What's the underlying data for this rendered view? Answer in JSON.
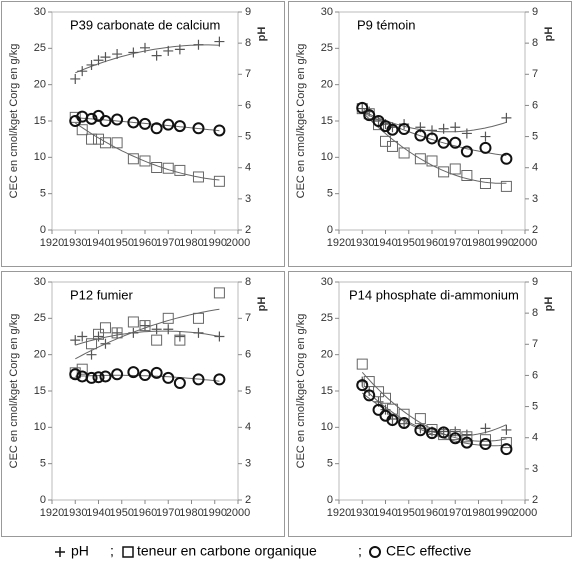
{
  "legend_separator": ";",
  "chart_data": [
    {
      "type": "scatter",
      "title": "P39 carbonate de calcium",
      "ylabel": "CEC en cmol/kget Corg en g/kg",
      "y2label": "pH",
      "x": [
        1930,
        1933,
        1937,
        1940,
        1943,
        1948,
        1955,
        1960,
        1965,
        1970,
        1975,
        1983,
        1992
      ],
      "xlim": [
        1920,
        2000
      ],
      "xticks": [
        1920,
        1930,
        1940,
        1950,
        1960,
        1970,
        1980,
        1990,
        2000
      ],
      "ylim": [
        0,
        30
      ],
      "yticks": [
        0,
        5,
        10,
        15,
        20,
        25,
        30
      ],
      "y2lim": [
        2,
        9
      ],
      "y2ticks": [
        2,
        3,
        4,
        5,
        6,
        7,
        8,
        9
      ],
      "grid": false,
      "trendline": "polynomial",
      "series": [
        {
          "name": "pH",
          "marker": "plus",
          "color": "#555555",
          "axis": "y2",
          "values": [
            6.85,
            7.1,
            7.3,
            7.45,
            7.55,
            7.65,
            7.7,
            7.85,
            7.6,
            7.75,
            7.8,
            7.95,
            8.05
          ]
        },
        {
          "name": "teneur en carbone organique",
          "marker": "square",
          "color": "#666666",
          "values": [
            15.5,
            13.8,
            12.5,
            12.5,
            12.0,
            12.0,
            9.8,
            9.5,
            8.6,
            8.5,
            8.2,
            7.3,
            6.7
          ]
        },
        {
          "name": "CEC effective",
          "marker": "circle",
          "color": "#111111",
          "values": [
            15.0,
            15.6,
            15.3,
            15.7,
            15.0,
            15.2,
            14.8,
            14.6,
            14.0,
            14.5,
            14.3,
            14.0,
            13.7
          ]
        }
      ]
    },
    {
      "type": "scatter",
      "title": "P9 témoin",
      "ylabel": "CEC en cmol/kget Corg en g/kg",
      "y2label": "pH",
      "x": [
        1930,
        1933,
        1937,
        1940,
        1943,
        1948,
        1955,
        1960,
        1965,
        1970,
        1975,
        1983,
        1992
      ],
      "xlim": [
        1920,
        2000
      ],
      "xticks": [
        1920,
        1930,
        1940,
        1950,
        1960,
        1970,
        1980,
        1990,
        2000
      ],
      "ylim": [
        0,
        30
      ],
      "yticks": [
        0,
        5,
        10,
        15,
        20,
        25,
        30
      ],
      "y2lim": [
        2,
        9
      ],
      "y2ticks": [
        2,
        3,
        4,
        5,
        6,
        7,
        8,
        9
      ],
      "grid": false,
      "trendline": "polynomial",
      "series": [
        {
          "name": "pH",
          "marker": "plus",
          "color": "#555555",
          "axis": "y2",
          "values": [
            5.9,
            5.8,
            5.5,
            5.4,
            5.3,
            5.4,
            5.3,
            5.2,
            5.25,
            5.3,
            5.1,
            5.0,
            5.6
          ]
        },
        {
          "name": "teneur en carbone organique",
          "marker": "square",
          "color": "#666666",
          "values": [
            16.7,
            16.0,
            14.5,
            12.2,
            11.5,
            10.6,
            9.8,
            9.5,
            8.0,
            8.4,
            7.5,
            6.4,
            6.0
          ]
        },
        {
          "name": "CEC effective",
          "marker": "circle",
          "color": "#111111",
          "values": [
            16.8,
            15.8,
            15.0,
            14.3,
            13.8,
            13.9,
            13.0,
            12.6,
            12.0,
            12.0,
            10.8,
            11.3,
            9.8
          ]
        }
      ]
    },
    {
      "type": "scatter",
      "title": "P12 fumier",
      "ylabel": "CEC en cmol/kget Corg en g/kg",
      "y2label": "pH",
      "x": [
        1930,
        1933,
        1937,
        1940,
        1943,
        1948,
        1955,
        1960,
        1965,
        1970,
        1975,
        1983,
        1992
      ],
      "xlim": [
        1920,
        2000
      ],
      "xticks": [
        1920,
        1930,
        1940,
        1950,
        1960,
        1970,
        1980,
        1990,
        2000
      ],
      "ylim": [
        0,
        30
      ],
      "yticks": [
        0,
        5,
        10,
        15,
        20,
        25,
        30
      ],
      "y2lim": [
        2,
        8
      ],
      "y2ticks": [
        2,
        3,
        4,
        5,
        6,
        7,
        8
      ],
      "grid": false,
      "trendline": "polynomial",
      "series": [
        {
          "name": "pH",
          "marker": "plus",
          "color": "#555555",
          "axis": "y2",
          "values": [
            6.4,
            6.5,
            6.0,
            6.5,
            6.3,
            6.6,
            6.6,
            6.8,
            6.7,
            6.7,
            6.5,
            6.6,
            6.5
          ]
        },
        {
          "name": "teneur en carbone organique",
          "marker": "square",
          "color": "#666666",
          "values": [
            17.5,
            18.0,
            21.5,
            22.8,
            23.7,
            23.0,
            24.5,
            24.0,
            22.0,
            25.0,
            22.0,
            25.0,
            28.5
          ]
        },
        {
          "name": "CEC effective",
          "marker": "circle",
          "color": "#111111",
          "values": [
            17.3,
            17.0,
            16.8,
            16.9,
            17.0,
            17.3,
            17.6,
            17.2,
            17.5,
            16.8,
            16.1,
            16.6,
            16.6
          ]
        }
      ]
    },
    {
      "type": "scatter",
      "title": "P14 phosphate di-ammonium",
      "ylabel": "CEC en cmol/kget Corg en g/kg",
      "y2label": "pH",
      "x": [
        1930,
        1933,
        1937,
        1940,
        1943,
        1948,
        1955,
        1960,
        1965,
        1970,
        1975,
        1983,
        1992
      ],
      "xlim": [
        1920,
        2000
      ],
      "xticks": [
        1920,
        1930,
        1940,
        1950,
        1960,
        1970,
        1980,
        1990,
        2000
      ],
      "ylim": [
        0,
        30
      ],
      "yticks": [
        0,
        5,
        10,
        15,
        20,
        25,
        30
      ],
      "y2lim": [
        2,
        9
      ],
      "y2ticks": [
        2,
        3,
        4,
        5,
        6,
        7,
        8,
        9
      ],
      "grid": false,
      "trendline": "polynomial",
      "series": [
        {
          "name": "pH",
          "marker": "plus",
          "color": "#555555",
          "axis": "y2",
          "values": [
            5.8,
            5.5,
            5.15,
            4.9,
            4.6,
            4.45,
            4.3,
            4.2,
            4.2,
            4.2,
            4.1,
            4.3,
            4.25
          ]
        },
        {
          "name": "teneur en carbone organique",
          "marker": "square",
          "color": "#666666",
          "values": [
            18.7,
            16.3,
            14.9,
            14.0,
            12.5,
            11.8,
            11.2,
            9.7,
            9.0,
            9.0,
            8.7,
            8.3,
            7.9
          ]
        },
        {
          "name": "CEC effective",
          "marker": "circle",
          "color": "#111111",
          "values": [
            15.8,
            14.4,
            12.4,
            11.6,
            11.0,
            10.6,
            9.6,
            9.2,
            9.3,
            8.5,
            7.9,
            7.7,
            7.0
          ]
        }
      ]
    }
  ]
}
